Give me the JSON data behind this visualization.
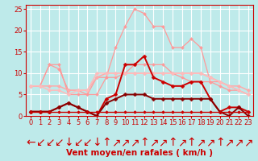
{
  "xlabel": "Vent moyen/en rafales ( km/h )",
  "bg_color": "#beeaea",
  "grid_color": "#ffffff",
  "xlim": [
    -0.5,
    23.5
  ],
  "ylim": [
    0,
    26
  ],
  "yticks": [
    0,
    5,
    10,
    15,
    20,
    25
  ],
  "xticks": [
    0,
    1,
    2,
    3,
    4,
    5,
    6,
    7,
    8,
    9,
    10,
    11,
    12,
    13,
    14,
    15,
    16,
    17,
    18,
    19,
    20,
    21,
    22,
    23
  ],
  "series": [
    {
      "x": [
        0,
        1,
        2,
        3,
        4,
        5,
        6,
        7,
        8,
        9,
        10,
        11,
        12,
        13,
        14,
        15,
        16,
        17,
        18,
        19,
        20,
        21,
        22,
        23
      ],
      "y": [
        7,
        7,
        12,
        12,
        5,
        5,
        5,
        5,
        9,
        16,
        21,
        25,
        24,
        21,
        21,
        16,
        16,
        18,
        16,
        8,
        8,
        7,
        6,
        5
      ],
      "color": "#ff9999",
      "linewidth": 0.9,
      "marker": "D",
      "markersize": 2.0
    },
    {
      "x": [
        0,
        1,
        2,
        3,
        4,
        5,
        6,
        7,
        8,
        9,
        10,
        11,
        12,
        13,
        14,
        15,
        16,
        17,
        18,
        19,
        20,
        21,
        22,
        23
      ],
      "y": [
        7,
        7,
        12,
        11,
        6,
        6,
        5,
        9,
        9,
        9,
        10,
        12,
        12,
        12,
        12,
        10,
        9,
        8,
        8,
        8,
        7,
        6,
        6,
        5
      ],
      "color": "#ff9999",
      "linewidth": 0.9,
      "marker": "D",
      "markersize": 2.0
    },
    {
      "x": [
        0,
        1,
        2,
        3,
        4,
        5,
        6,
        7,
        8,
        9,
        10,
        11,
        12,
        13,
        14,
        15,
        16,
        17,
        18,
        19,
        20,
        21,
        22,
        23
      ],
      "y": [
        7,
        7,
        7,
        7,
        6,
        6,
        6,
        9,
        10,
        10,
        10,
        10,
        10,
        10,
        10,
        10,
        10,
        10,
        10,
        9,
        8,
        7,
        7,
        6
      ],
      "color": "#ffaaaa",
      "linewidth": 1.1,
      "marker": "D",
      "markersize": 2.3
    },
    {
      "x": [
        0,
        1,
        2,
        3,
        4,
        5,
        6,
        7,
        8,
        9,
        10,
        11,
        12,
        13,
        14,
        15,
        16,
        17,
        18,
        19,
        20,
        21,
        22,
        23
      ],
      "y": [
        7,
        7,
        6,
        6,
        5,
        6,
        6,
        10,
        10,
        10,
        10,
        10,
        10,
        10,
        10,
        10,
        10,
        10,
        10,
        9,
        8,
        7,
        6,
        5
      ],
      "color": "#ffbbbb",
      "linewidth": 1.1,
      "marker": "D",
      "markersize": 2.3
    },
    {
      "x": [
        0,
        1,
        2,
        3,
        4,
        5,
        6,
        7,
        8,
        9,
        10,
        11,
        12,
        13,
        14,
        15,
        16,
        17,
        18,
        19,
        20,
        21,
        22,
        23
      ],
      "y": [
        1,
        1,
        1,
        2,
        3,
        2,
        1,
        0,
        4,
        5,
        12,
        12,
        14,
        9,
        8,
        7,
        7,
        8,
        8,
        4,
        1,
        2,
        2,
        1
      ],
      "color": "#cc0000",
      "linewidth": 1.4,
      "marker": "D",
      "markersize": 2.5
    },
    {
      "x": [
        0,
        1,
        2,
        3,
        4,
        5,
        6,
        7,
        8,
        9,
        10,
        11,
        12,
        13,
        14,
        15,
        16,
        17,
        18,
        19,
        20,
        21,
        22,
        23
      ],
      "y": [
        1,
        1,
        1,
        2,
        3,
        2,
        1,
        0,
        3,
        4,
        5,
        5,
        5,
        4,
        4,
        4,
        4,
        4,
        4,
        4,
        1,
        0,
        2,
        0
      ],
      "color": "#880000",
      "linewidth": 1.4,
      "marker": "D",
      "markersize": 2.5
    },
    {
      "x": [
        0,
        1,
        2,
        3,
        4,
        5,
        6,
        7,
        8,
        9,
        10,
        11,
        12,
        13,
        14,
        15,
        16,
        17,
        18,
        19,
        20,
        21,
        22,
        23
      ],
      "y": [
        1,
        1,
        1,
        1,
        1,
        1,
        1,
        1,
        1,
        1,
        1,
        1,
        1,
        1,
        1,
        1,
        1,
        1,
        1,
        1,
        1,
        1,
        1,
        1
      ],
      "color": "#cc0000",
      "linewidth": 1.0,
      "marker": "D",
      "markersize": 2.0
    }
  ],
  "wind_dirs": [
    "←",
    "↙",
    "↙",
    "↙",
    "↓",
    "↙",
    "↙",
    "↓",
    "↑",
    "↗",
    "↗",
    "↗",
    "↑",
    "↗",
    "↗",
    "↑",
    "↗",
    "↑",
    "↗",
    "↗",
    "↑",
    "↗",
    "↗",
    "↗"
  ],
  "xlabel_color": "#cc0000",
  "xlabel_fontsize": 7.5,
  "tick_color": "#cc0000",
  "tick_fontsize": 6
}
